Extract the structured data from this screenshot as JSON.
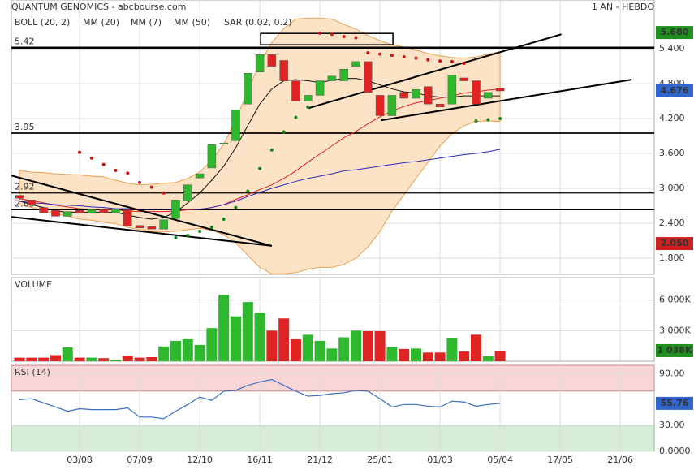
{
  "header": {
    "title": "QUANTUM GENOMICS - abcbourse.com",
    "period": "1 AN - HEBDO"
  },
  "chart_data": [
    {
      "type": "candlestick",
      "x": [
        0,
        1,
        2,
        3,
        4,
        5,
        6,
        7,
        8,
        9,
        10,
        11,
        12,
        13,
        14,
        15,
        16,
        17,
        18,
        19,
        20,
        21,
        22,
        23,
        24,
        25,
        26,
        27,
        28,
        29,
        30,
        31,
        32,
        33,
        34,
        35,
        36,
        37,
        38,
        39,
        40
      ],
      "open": [
        2.88,
        2.8,
        2.67,
        2.62,
        2.52,
        2.62,
        2.57,
        2.63,
        2.58,
        2.63,
        2.36,
        2.34,
        2.3,
        2.48,
        2.78,
        3.18,
        3.35,
        3.76,
        3.82,
        4.45,
        5.0,
        5.3,
        5.2,
        4.85,
        4.5,
        4.6,
        4.85,
        4.85,
        5.1,
        5.18,
        4.6,
        4.25,
        4.65,
        4.55,
        4.75,
        4.45,
        4.45,
        4.9,
        4.85,
        4.55,
        4.72
      ],
      "high": {
        "value": 5.68,
        "label": "5.680"
      },
      "low": {
        "value": 2.05,
        "label": "2.050"
      },
      "close": [
        2.83,
        2.72,
        2.58,
        2.52,
        2.6,
        2.58,
        2.63,
        2.58,
        2.64,
        2.35,
        2.32,
        2.3,
        2.46,
        2.8,
        3.06,
        3.25,
        3.75,
        3.78,
        4.35,
        4.98,
        5.3,
        5.1,
        4.85,
        4.5,
        4.6,
        4.85,
        4.93,
        5.05,
        5.18,
        4.65,
        4.25,
        4.6,
        4.55,
        4.7,
        4.45,
        4.4,
        4.95,
        4.85,
        4.45,
        4.65,
        4.676
      ],
      "up_color": "#2db82d",
      "down_color": "#e02424",
      "bollinger": {
        "name": "BOLL (20, 2)",
        "color": "#e8a050",
        "upper": [
          3.31,
          3.28,
          3.27,
          3.25,
          3.24,
          3.23,
          3.21,
          3.2,
          3.14,
          3.09,
          3.06,
          3.07,
          3.09,
          3.1,
          3.17,
          3.28,
          3.48,
          3.76,
          4.18,
          4.68,
          5.15,
          5.51,
          5.75,
          5.91,
          5.93,
          5.93,
          5.91,
          5.82,
          5.74,
          5.63,
          5.54,
          5.47,
          5.43,
          5.38,
          5.32,
          5.28,
          5.25,
          5.24,
          5.26,
          5.31,
          5.35
        ],
        "lower": [
          2.72,
          2.67,
          2.61,
          2.56,
          2.52,
          2.47,
          2.45,
          2.42,
          2.39,
          2.33,
          2.29,
          2.26,
          2.25,
          2.26,
          2.29,
          2.31,
          2.28,
          2.2,
          2.06,
          1.85,
          1.64,
          1.53,
          1.53,
          1.55,
          1.61,
          1.64,
          1.64,
          1.69,
          1.8,
          1.99,
          2.26,
          2.61,
          2.89,
          3.17,
          3.45,
          3.73,
          3.94,
          4.08,
          4.15,
          4.16,
          4.15
        ]
      },
      "series": [
        {
          "name": "MM (20)",
          "color": "#e02020",
          "values": [
            2.82,
            2.79,
            2.75,
            2.71,
            2.68,
            2.65,
            2.64,
            2.64,
            2.63,
            2.61,
            2.6,
            2.6,
            2.6,
            2.61,
            2.63,
            2.64,
            2.67,
            2.72,
            2.81,
            2.89,
            2.98,
            3.06,
            3.17,
            3.3,
            3.45,
            3.59,
            3.73,
            3.87,
            3.98,
            4.11,
            4.23,
            4.33,
            4.41,
            4.47,
            4.51,
            4.55,
            4.59,
            4.64,
            4.66,
            4.69,
            4.71
          ]
        },
        {
          "name": "MM (7)",
          "color": "#111111",
          "values": [
            2.78,
            2.72,
            2.67,
            2.61,
            2.59,
            2.59,
            2.59,
            2.59,
            2.59,
            2.54,
            2.5,
            2.47,
            2.5,
            2.59,
            2.75,
            2.92,
            3.14,
            3.38,
            3.7,
            4.08,
            4.45,
            4.71,
            4.85,
            4.87,
            4.85,
            4.82,
            4.86,
            4.89,
            4.89,
            4.85,
            4.78,
            4.71,
            4.66,
            4.64,
            4.59,
            4.57,
            4.57,
            4.59,
            4.59,
            4.59,
            4.59
          ]
        },
        {
          "name": "MM (50)",
          "color": "#2a2ab8",
          "values": [
            2.78,
            2.75,
            2.74,
            2.72,
            2.71,
            2.7,
            2.68,
            2.67,
            2.65,
            2.65,
            2.64,
            2.64,
            2.64,
            2.64,
            2.64,
            2.64,
            2.67,
            2.72,
            2.78,
            2.86,
            2.93,
            3.0,
            3.06,
            3.12,
            3.17,
            3.21,
            3.25,
            3.3,
            3.32,
            3.35,
            3.38,
            3.41,
            3.44,
            3.46,
            3.49,
            3.52,
            3.55,
            3.58,
            3.6,
            3.63,
            3.67
          ]
        }
      ],
      "sar": {
        "name": "SAR (0.02, 0.2)",
        "color": "#cc1111",
        "alt_color": "#118811",
        "values": [
          null,
          null,
          null,
          null,
          null,
          3.62,
          3.52,
          3.41,
          3.31,
          3.26,
          3.1,
          3.02,
          2.92,
          2.15,
          2.19,
          2.26,
          2.33,
          2.47,
          2.67,
          2.95,
          3.34,
          3.66,
          3.97,
          4.22,
          4.4,
          5.67,
          5.65,
          5.61,
          5.59,
          5.33,
          5.31,
          5.29,
          5.26,
          5.24,
          5.21,
          5.19,
          5.18,
          5.15,
          4.16,
          4.18,
          4.2
        ]
      },
      "levels": [
        5.42,
        3.95,
        2.92,
        2.63
      ],
      "trendlines": [
        {
          "x": [
            -0.68,
            21.0
          ],
          "y": [
            3.22,
            2.01
          ]
        },
        {
          "x": [
            -0.68,
            21.0
          ],
          "y": [
            2.51,
            2.01
          ]
        },
        {
          "x": [
            24.05,
            45.1
          ],
          "y": [
            4.38,
            5.65
          ]
        },
        {
          "x": [
            30.07,
            50.95
          ],
          "y": [
            4.17,
            4.87
          ]
        }
      ],
      "box": {
        "x": [
          20.07,
          31.08
        ],
        "y": [
          5.665,
          5.47
        ]
      },
      "xlim": [
        -0.68,
        52.83
      ],
      "xticks": [
        {
          "value": 5,
          "label": "03/08"
        },
        {
          "value": 10,
          "label": "07/09"
        },
        {
          "value": 15,
          "label": "12/10"
        },
        {
          "value": 20,
          "label": "16/11"
        },
        {
          "value": 25,
          "label": "21/12"
        },
        {
          "value": 30,
          "label": "25/01"
        },
        {
          "value": 35,
          "label": "01/03"
        },
        {
          "value": 40,
          "label": "05/04"
        },
        {
          "value": 45,
          "label": "17/05"
        },
        {
          "value": 50,
          "label": "21/06"
        }
      ],
      "ylim": [
        1.52,
        6.24
      ],
      "yticks": [
        {
          "value": 5.4,
          "label": "5.400"
        },
        {
          "value": 4.8,
          "label": "4.800"
        },
        {
          "value": 4.2,
          "label": "4.200"
        },
        {
          "value": 3.6,
          "label": "3.600"
        },
        {
          "value": 3.0,
          "label": "3.000"
        },
        {
          "value": 2.4,
          "label": "2.400"
        },
        {
          "value": 1.8,
          "label": "1.800"
        }
      ]
    },
    {
      "type": "bar",
      "title": "VOLUME",
      "values": [
        350,
        350,
        350,
        600,
        1350,
        350,
        350,
        300,
        150,
        550,
        350,
        400,
        1450,
        2000,
        2150,
        1600,
        3250,
        6500,
        4400,
        5800,
        4750,
        3000,
        4200,
        2150,
        2600,
        2000,
        1250,
        2350,
        3000,
        2950,
        2950,
        1400,
        1200,
        1250,
        850,
        850,
        2300,
        950,
        2600,
        500,
        1038
      ],
      "last_label": "1 038K",
      "ylim": [
        0,
        8200
      ],
      "yticks": [
        {
          "value": 6000,
          "label": "6 000K"
        },
        {
          "value": 3000,
          "label": "3 000K"
        }
      ]
    },
    {
      "type": "line",
      "title": "RSI (14)",
      "series": [
        {
          "name": "RSI",
          "color": "#3a6fc0",
          "values": [
            60,
            61.2,
            56.3,
            51.5,
            46.6,
            49.5,
            48.5,
            48.5,
            48.5,
            50.5,
            39.8,
            39.8,
            37.9,
            46.6,
            54.4,
            63.1,
            59.2,
            69.9,
            70.9,
            76.7,
            80.6,
            83.5,
            76.7,
            69.9,
            64.1,
            65,
            67,
            68,
            70.9,
            69.9,
            61.2,
            51.5,
            54.4,
            54.4,
            52.4,
            51.5,
            58.3,
            57.3,
            52.4,
            54.4,
            55.76
          ]
        }
      ],
      "zones": [
        70,
        30
      ],
      "ylim": [
        0,
        100
      ],
      "yticks": [
        {
          "value": 90,
          "label": "90.00"
        },
        {
          "value": 30,
          "label": "30.00"
        },
        {
          "value": 0,
          "label": "0.0000"
        }
      ]
    }
  ]
}
